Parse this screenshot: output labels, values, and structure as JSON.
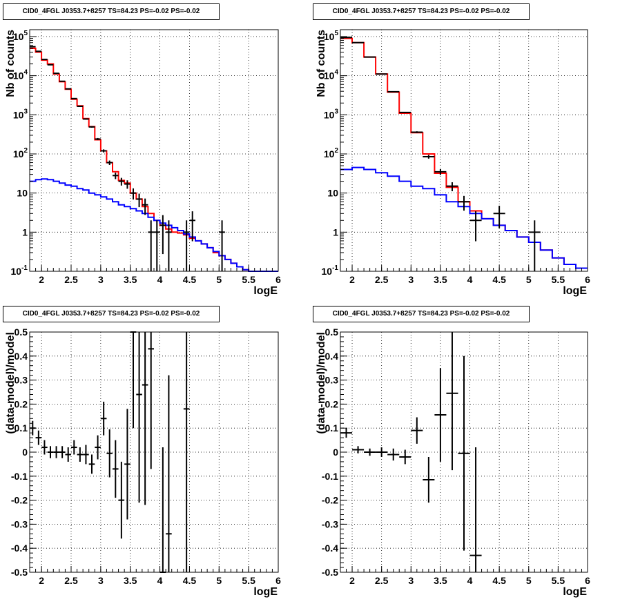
{
  "chart_data": [
    {
      "type": "step",
      "title": "CID0_4FGL J0353.7+8257 TS=84.23 PS=-0.02 PS=-0.02",
      "xlabel": "logE",
      "ylabel": "Nb of counts",
      "ylog": true,
      "xlim": [
        1.8,
        6.0
      ],
      "ylim": [
        0.1,
        150000
      ],
      "xticks": [
        2,
        2.5,
        3,
        3.5,
        4,
        4.5,
        5,
        5.5,
        6
      ],
      "xtick_labels": [
        "2",
        "2.5",
        "3",
        "3.5",
        "4",
        "4.5",
        "5",
        "5.5",
        "6"
      ],
      "yticks": [
        0.1,
        1,
        10,
        100,
        1000,
        10000,
        100000
      ],
      "ytick_labels": [
        "10^-1",
        "1",
        "10",
        "10^2",
        "10^3",
        "10^4",
        "10^5"
      ],
      "grid": true,
      "bin_edges": [
        1.8,
        1.9,
        2.0,
        2.1,
        2.2,
        2.3,
        2.4,
        2.5,
        2.6,
        2.7,
        2.8,
        2.9,
        3.0,
        3.1,
        3.2,
        3.3,
        3.4,
        3.5,
        3.6,
        3.7,
        3.8,
        3.9,
        4.0,
        4.1,
        4.2,
        4.3,
        4.4,
        4.5,
        4.6,
        4.7,
        4.8,
        4.9,
        5.0,
        5.1,
        5.2,
        5.3,
        5.4,
        5.5,
        5.6,
        5.7,
        5.8,
        5.9,
        6.0
      ],
      "series": [
        {
          "kind": "step",
          "color": "#ff0000",
          "values": [
            50000,
            40000,
            25000,
            20000,
            11000,
            7000,
            4500,
            2500,
            1700,
            800,
            500,
            230,
            120,
            60,
            35,
            21,
            18,
            10,
            7,
            4.5,
            3,
            2,
            1.5,
            1.2,
            1.0,
            0.95,
            0.85,
            0.7,
            0.6,
            0.5,
            0.4,
            0.3,
            0.25,
            0.2,
            0.16,
            0.13,
            0.11,
            0.1,
            0.1,
            0.1,
            0.1,
            0.1
          ]
        },
        {
          "kind": "step",
          "color": "#0000ff",
          "values": [
            20,
            22,
            23,
            22,
            20,
            18,
            16,
            15,
            13,
            12,
            10,
            9,
            8,
            7,
            6,
            5,
            4.5,
            4,
            3.5,
            3,
            2.4,
            2,
            1.7,
            1.5,
            1.3,
            1.1,
            0.9,
            0.75,
            0.6,
            0.5,
            0.4,
            0.32,
            0.25,
            0.2,
            0.16,
            0.13,
            0.11,
            0.1,
            0.1,
            0.1,
            0.1,
            0.1
          ]
        },
        {
          "kind": "points",
          "color": "#000000",
          "x": [
            1.85,
            1.95,
            2.05,
            2.15,
            2.25,
            2.35,
            2.45,
            2.55,
            2.65,
            2.75,
            2.85,
            2.95,
            3.05,
            3.15,
            3.25,
            3.35,
            3.45,
            3.55,
            3.65,
            3.75,
            3.85,
            3.95,
            4.05,
            4.15,
            4.45,
            4.55,
            5.05
          ],
          "y": [
            55000,
            42000,
            26000,
            19000,
            11500,
            7200,
            4600,
            2600,
            1650,
            780,
            490,
            240,
            120,
            60,
            28,
            20,
            17,
            10,
            7,
            5,
            1,
            1,
            1.5,
            1,
            1,
            2,
            1
          ]
        }
      ]
    },
    {
      "type": "step",
      "title": "CID0_4FGL J0353.7+8257 TS=84.23 PS=-0.02 PS=-0.02",
      "xlabel": "logE",
      "ylabel": "Nb of counts",
      "ylog": true,
      "xlim": [
        1.8,
        6.0
      ],
      "ylim": [
        0.1,
        150000
      ],
      "xticks": [
        2,
        2.5,
        3,
        3.5,
        4,
        4.5,
        5,
        5.5,
        6
      ],
      "xtick_labels": [
        "2",
        "2.5",
        "3",
        "3.5",
        "4",
        "4.5",
        "5",
        "5.5",
        "6"
      ],
      "yticks": [
        0.1,
        1,
        10,
        100,
        1000,
        10000,
        100000
      ],
      "ytick_labels": [
        "10^-1",
        "1",
        "10",
        "10^2",
        "10^3",
        "10^4",
        "10^5"
      ],
      "grid": true,
      "bin_edges": [
        1.8,
        2.0,
        2.2,
        2.4,
        2.6,
        2.8,
        3.0,
        3.2,
        3.4,
        3.6,
        3.8,
        4.0,
        4.2,
        4.4,
        4.6,
        4.8,
        5.0,
        5.2,
        5.4,
        5.6,
        5.8,
        6.0
      ],
      "series": [
        {
          "kind": "step",
          "color": "#ff0000",
          "values": [
            90000,
            70000,
            30000,
            11000,
            3800,
            1100,
            350,
            100,
            32,
            14,
            6,
            3.5,
            2.2,
            1.5,
            1.1,
            0.75,
            0.55,
            0.35,
            0.22,
            0.15,
            0.12
          ]
        },
        {
          "kind": "step",
          "color": "#0000ff",
          "values": [
            40,
            45,
            40,
            33,
            27,
            20,
            15,
            13,
            9,
            6,
            4.5,
            3,
            2.2,
            1.5,
            1.1,
            0.75,
            0.55,
            0.35,
            0.22,
            0.15,
            0.12
          ]
        },
        {
          "kind": "points",
          "color": "#000000",
          "x": [
            1.9,
            2.1,
            2.3,
            2.5,
            2.7,
            2.9,
            3.1,
            3.3,
            3.5,
            3.7,
            3.9,
            4.1,
            4.5,
            5.1
          ],
          "y": [
            95000,
            70000,
            30000,
            11000,
            3900,
            1150,
            360,
            85,
            35,
            15,
            6,
            2,
            3,
            1
          ]
        }
      ]
    },
    {
      "type": "scatter",
      "title": "CID0_4FGL J0353.7+8257 TS=84.23 PS=-0.02 PS=-0.02",
      "xlabel": "logE",
      "ylabel": "(data-model)/model",
      "xlim": [
        1.8,
        6.0
      ],
      "ylim": [
        -0.5,
        0.5
      ],
      "xticks": [
        2,
        2.5,
        3,
        3.5,
        4,
        4.5,
        5,
        5.5,
        6
      ],
      "xtick_labels": [
        "2",
        "2.5",
        "3",
        "3.5",
        "4",
        "4.5",
        "5",
        "5.5",
        "6"
      ],
      "yticks": [
        -0.5,
        -0.4,
        -0.3,
        -0.2,
        -0.1,
        0,
        0.1,
        0.2,
        0.3,
        0.4,
        0.5
      ],
      "ytick_labels": [
        "-0.5",
        "-0.4",
        "-0.3",
        "-0.2",
        "-0.1",
        "0",
        "0.1",
        "0.2",
        "0.3",
        "0.4",
        "0.5"
      ],
      "grid": true,
      "xerr": 0.05,
      "series": [
        {
          "kind": "points",
          "color": "#000000",
          "x": [
            1.85,
            1.95,
            2.05,
            2.15,
            2.25,
            2.35,
            2.45,
            2.55,
            2.65,
            2.75,
            2.85,
            2.95,
            3.05,
            3.15,
            3.25,
            3.35,
            3.45,
            3.55,
            3.65,
            3.75,
            3.85,
            4.05,
            4.15,
            4.45
          ],
          "y": [
            0.1,
            0.06,
            0.02,
            0.0,
            0.0,
            0.0,
            -0.01,
            0.02,
            -0.01,
            -0.01,
            -0.05,
            0.02,
            0.14,
            -0.005,
            -0.07,
            -0.2,
            -0.05,
            0.5,
            0.24,
            0.28,
            0.43,
            -0.5,
            -0.34,
            0.18
          ],
          "yerr": [
            0.03,
            0.03,
            0.03,
            0.025,
            0.025,
            0.025,
            0.03,
            0.03,
            0.03,
            0.04,
            0.04,
            0.05,
            0.07,
            0.1,
            0.12,
            0.16,
            0.23,
            0.4,
            0.45,
            0.5,
            0.5,
            0.52,
            0.66,
            0.7
          ]
        }
      ]
    },
    {
      "type": "scatter",
      "title": "CID0_4FGL J0353.7+8257 TS=84.23 PS=-0.02 PS=-0.02",
      "xlabel": "logE",
      "ylabel": "(data-model)/model",
      "xlim": [
        1.8,
        6.0
      ],
      "ylim": [
        -0.5,
        0.5
      ],
      "xticks": [
        2,
        2.5,
        3,
        3.5,
        4,
        4.5,
        5,
        5.5,
        6
      ],
      "xtick_labels": [
        "2",
        "2.5",
        "3",
        "3.5",
        "4",
        "4.5",
        "5",
        "5.5",
        "6"
      ],
      "yticks": [
        -0.5,
        -0.4,
        -0.3,
        -0.2,
        -0.1,
        0,
        0.1,
        0.2,
        0.3,
        0.4,
        0.5
      ],
      "ytick_labels": [
        "-0.5",
        "-0.4",
        "-0.3",
        "-0.2",
        "-0.1",
        "0",
        "0.1",
        "0.2",
        "0.3",
        "0.4",
        "0.5"
      ],
      "grid": true,
      "xerr": 0.1,
      "series": [
        {
          "kind": "points",
          "color": "#000000",
          "x": [
            1.9,
            2.1,
            2.3,
            2.5,
            2.7,
            2.9,
            3.1,
            3.3,
            3.5,
            3.7,
            3.9,
            4.1
          ],
          "y": [
            0.08,
            0.01,
            0.0,
            0.0,
            -0.01,
            -0.02,
            0.09,
            -0.115,
            0.155,
            0.245,
            -0.005,
            -0.43
          ],
          "yerr": [
            0.02,
            0.015,
            0.015,
            0.02,
            0.025,
            0.03,
            0.055,
            0.095,
            0.195,
            0.32,
            0.405,
            0.45
          ]
        }
      ]
    }
  ],
  "colors": {
    "data_model": "#ff0000",
    "background_model": "#0000ff",
    "data_points": "#000000"
  }
}
